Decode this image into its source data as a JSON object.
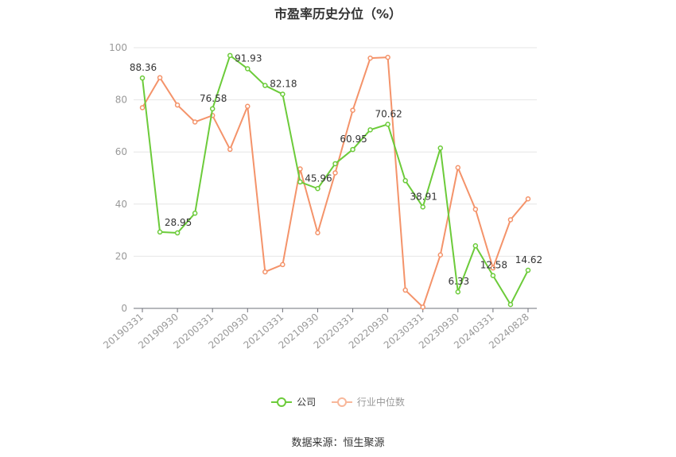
{
  "chart_data": {
    "type": "line",
    "title": "市盈率历史分位（%）",
    "categories": [
      "20190331",
      "20190630",
      "20190930",
      "20191231",
      "20200331",
      "20200630",
      "20200930",
      "20201231",
      "20210331",
      "20210630",
      "20210930",
      "20211231",
      "20220331",
      "20220630",
      "20220930",
      "20221231",
      "20230331",
      "20230630",
      "20230930",
      "20231231",
      "20240331",
      "20240630",
      "20240828"
    ],
    "x_tick_labels": [
      "20190331",
      "20190930",
      "20200331",
      "20200930",
      "20210331",
      "20210930",
      "20220331",
      "20220930",
      "20230331",
      "20230930",
      "20240331",
      "20240828"
    ],
    "ylim": [
      0,
      100
    ],
    "yticks": [
      0,
      20,
      40,
      60,
      80,
      100
    ],
    "grid": true,
    "legend_position": "bottom",
    "series": [
      {
        "name": "公司",
        "color": "#6ccb3a",
        "values": [
          88.36,
          29.3,
          28.95,
          36.5,
          76.58,
          97.0,
          91.93,
          85.5,
          82.18,
          48.5,
          45.96,
          55.5,
          60.95,
          68.5,
          70.62,
          49.0,
          38.91,
          61.5,
          6.33,
          24.0,
          12.58,
          1.5,
          14.62
        ],
        "data_labels": {
          "0": "88.36",
          "2": "28.95",
          "4": "76.58",
          "6": "91.93",
          "8": "82.18",
          "10": "45.96",
          "12": "60.95",
          "14": "70.62",
          "16": "38.91",
          "18": "6.33",
          "20": "12.58",
          "22": "14.62"
        }
      },
      {
        "name": "行业中位数",
        "color": "#f4936a",
        "values": [
          77.0,
          88.5,
          78.0,
          71.5,
          74.0,
          61.0,
          77.5,
          14.0,
          16.8,
          53.5,
          29.0,
          52.0,
          76.0,
          96.0,
          96.3,
          7.0,
          0.5,
          20.5,
          54.0,
          38.0,
          15.5,
          34.0,
          42.0
        ]
      }
    ]
  },
  "source_text": "数据来源：恒生聚源"
}
